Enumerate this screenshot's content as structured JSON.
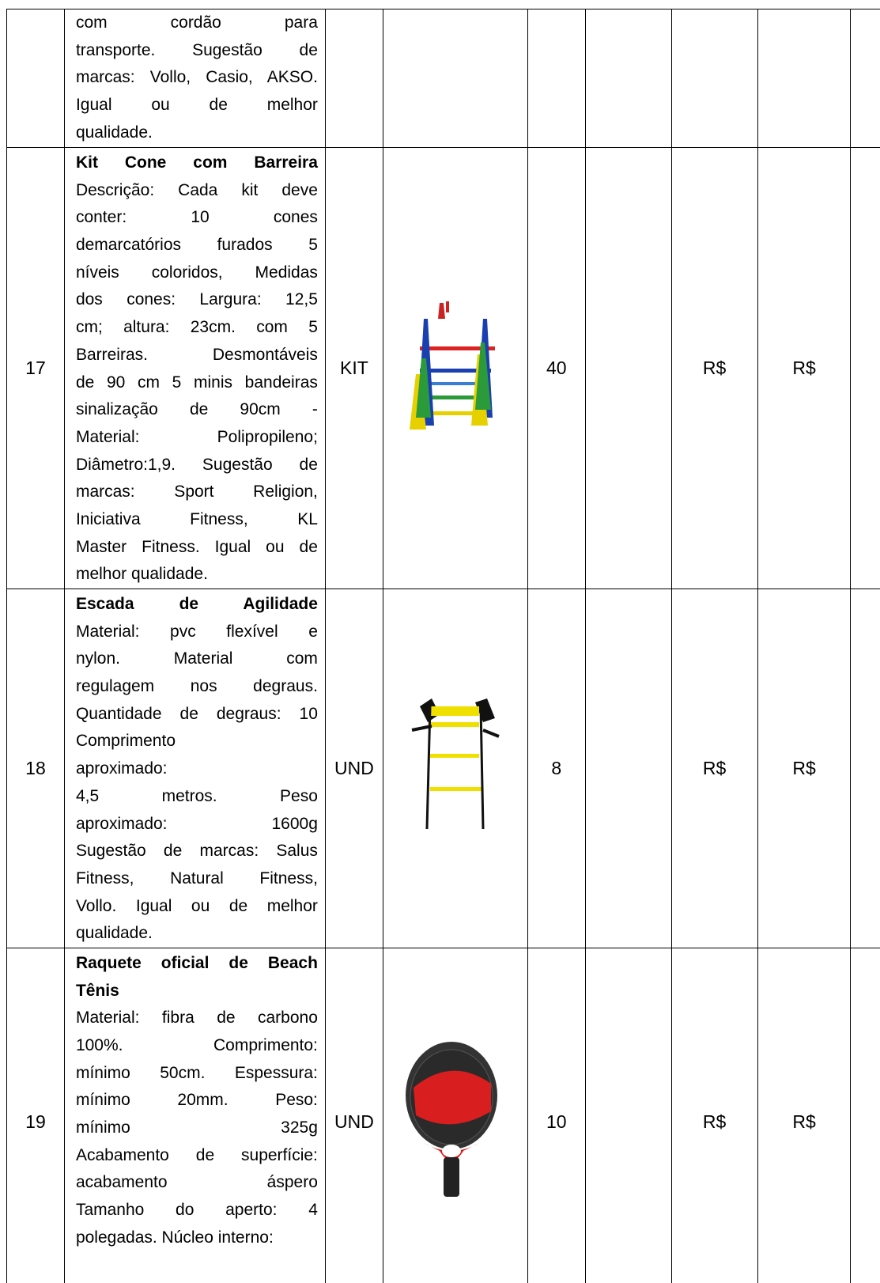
{
  "table": {
    "rows": [
      {
        "description": [
          [
            "com cordão para",
            "transporte. Sugestão de",
            "marcas: Vollo, Casio, AKSO.",
            "Igual ou de melhor",
            "qualidade."
          ]
        ]
      },
      {
        "number": "17",
        "title": [
          "Kit Cone com Barreira"
        ],
        "description": [
          [
            "Descrição: Cada kit deve",
            "conter: 10 cones",
            "demarcatórios furados 5",
            "níveis coloridos, Medidas",
            "dos cones: Largura: 12,5",
            "cm; altura: 23cm. com 5",
            "Barreiras. Desmontáveis",
            "de 90 cm 5 minis bandeiras",
            "sinalização de 90cm -",
            "Material: Polipropileno;",
            "Diâmetro:1,9. Sugestão de",
            "marcas: Sport Religion,",
            "Iniciativa Fitness, KL",
            "Master Fitness. Igual ou de",
            "melhor qualidade."
          ]
        ],
        "unit": "KIT",
        "quantity": "40",
        "unit_price": "R$",
        "total_price": "R$"
      },
      {
        "number": "18",
        "title": [
          "Escada de Agilidade"
        ],
        "description": [
          [
            "Material: pvc flexível e",
            "nylon. Material com",
            "regulagem nos degraus.",
            "Quantidade de degraus: 10",
            "Comprimento"
          ],
          [
            "aproximado:"
          ],
          [
            "4,5 metros. Peso",
            "aproximado: 1600g",
            "Sugestão de marcas: Salus",
            "Fitness, Natural Fitness,",
            "Vollo. Igual ou de melhor",
            "qualidade."
          ]
        ],
        "unit": "UND",
        "quantity": "8",
        "unit_price": "R$",
        "total_price": "R$"
      },
      {
        "number": "19",
        "title": [
          "Raquete oficial de Beach",
          "Tênis"
        ],
        "description": [
          [
            "Material: fibra de carbono",
            "100%. Comprimento:",
            "mínimo 50cm. Espessura:",
            "mínimo 20mm. Peso:",
            "mínimo 325g",
            "Acabamento de superfície:",
            "acabamento áspero",
            "Tamanho do aperto: 4",
            "polegadas. Núcleo interno:"
          ]
        ],
        "unit": "UND",
        "quantity": "10",
        "unit_price": "R$",
        "total_price": "R$"
      }
    ]
  }
}
